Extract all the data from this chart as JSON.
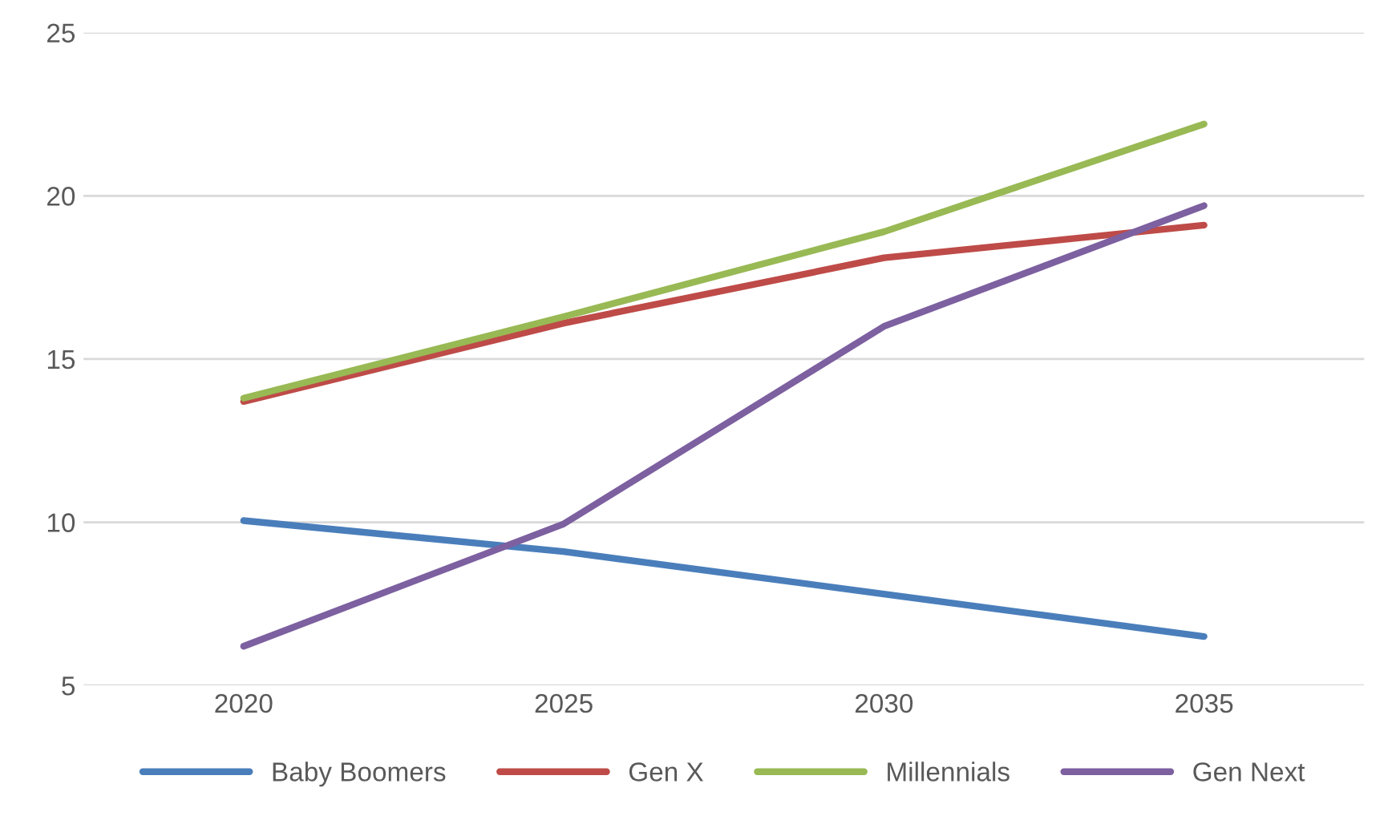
{
  "chart_data": {
    "type": "line",
    "categories": [
      "2020",
      "2025",
      "2030",
      "2035"
    ],
    "series": [
      {
        "name": "Baby Boomers",
        "color": "#4a7ebb",
        "values": [
          10.05,
          9.1,
          7.8,
          6.5
        ]
      },
      {
        "name": "Gen X",
        "color": "#be4b48",
        "values": [
          13.7,
          16.1,
          18.1,
          19.1
        ]
      },
      {
        "name": "Millennials",
        "color": "#98b954",
        "values": [
          13.8,
          16.3,
          18.9,
          22.2
        ]
      },
      {
        "name": "Gen Next",
        "color": "#7d60a0",
        "values": [
          6.2,
          9.95,
          16,
          19.7
        ]
      }
    ],
    "ylim": [
      5,
      25
    ],
    "yticks": [
      5,
      10,
      15,
      20,
      25
    ],
    "grid": "y",
    "legend": "bottom",
    "line_style": "solid",
    "marker": "none"
  }
}
